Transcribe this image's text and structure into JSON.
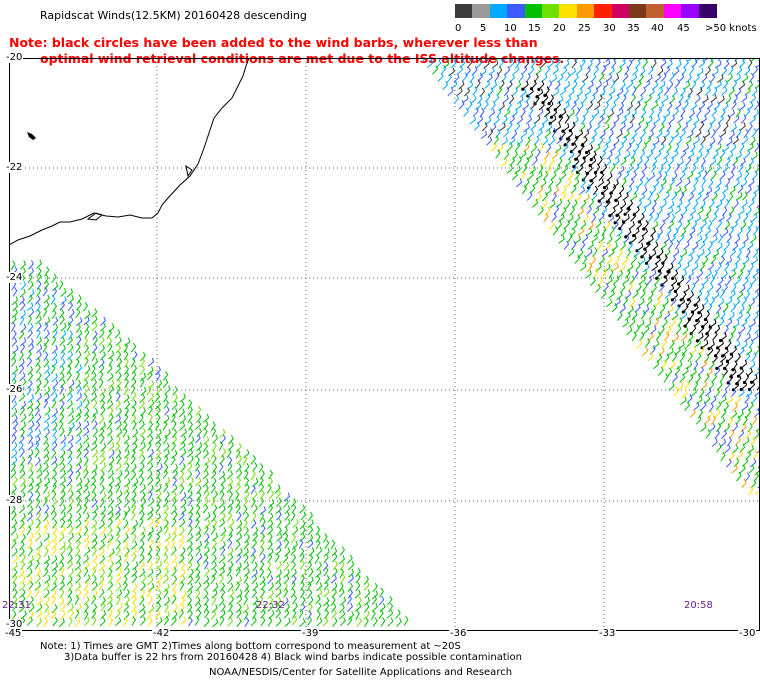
{
  "header": {
    "title": "Rapidscat Winds(12.5KM) 20160428 descending",
    "note_line1": "Note: black circles have been added to the wind barbs, wherever less than",
    "note_line2": "optimal wind retrieval conditions are met due to the ISS altitude changes."
  },
  "colorscale": {
    "colors": [
      "#3a3a3a",
      "#9a9a9a",
      "#00a8ff",
      "#3c5cff",
      "#00c000",
      "#70e000",
      "#ffe000",
      "#ff9a00",
      "#ff2000",
      "#d00060",
      "#7a3a1a",
      "#c06030",
      "#ff00ff",
      "#9a00ff",
      "#3a006a"
    ],
    "labels": [
      "0",
      "5",
      "10",
      "15",
      "20",
      "25",
      "30",
      "35",
      "40",
      "45",
      ">50 knots"
    ]
  },
  "axes": {
    "lat_labels": [
      "-20",
      "-22",
      "-24",
      "-26",
      "-28",
      "-30"
    ],
    "lon_labels": [
      "-45",
      "-42",
      "-39",
      "-36",
      "-33",
      "-30"
    ]
  },
  "time_labels": [
    "22:31",
    "22:32",
    "20:58"
  ],
  "footer": {
    "line1": "Note: 1) Times are GMT 2)Times along bottom correspond to measurement at ~20S",
    "line2": "3)Data buffer is 22 hrs from 20160428 4) Black wind barbs indicate possible contamination",
    "line3": "NOAA/NESDIS/Center for Satellite Applications and Research"
  }
}
